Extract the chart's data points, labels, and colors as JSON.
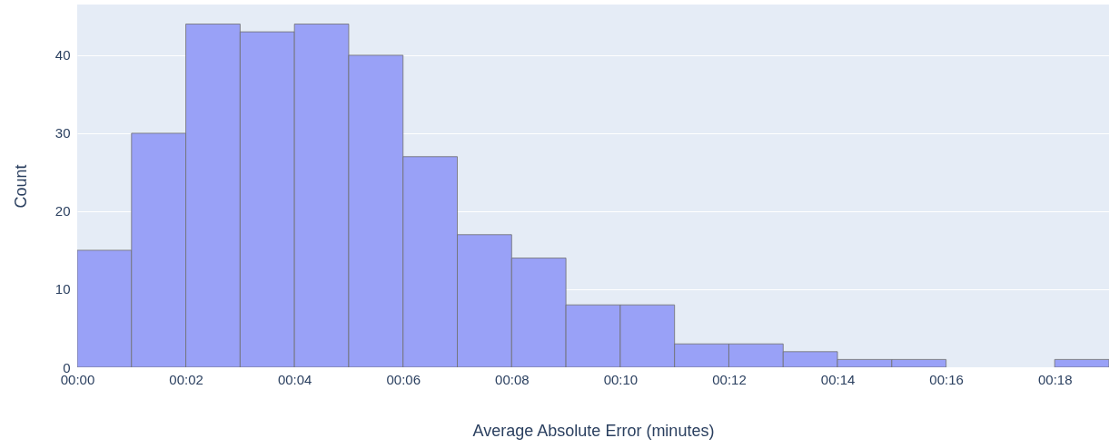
{
  "chart_data": {
    "type": "histogram",
    "xlabel": "Average Absolute Error (minutes)",
    "ylabel": "Count",
    "bins": [
      0,
      1,
      2,
      3,
      4,
      5,
      6,
      7,
      8,
      9,
      10,
      11,
      12,
      13,
      14,
      15,
      16,
      17,
      18,
      19
    ],
    "values": [
      15,
      30,
      44,
      43,
      44,
      40,
      27,
      17,
      14,
      8,
      8,
      3,
      3,
      2,
      1,
      1,
      0,
      0,
      1
    ],
    "color": "#99a1f7",
    "xlim": [
      0,
      19
    ],
    "xticks": [
      {
        "value": 0,
        "label": "00:00"
      },
      {
        "value": 2,
        "label": "00:02"
      },
      {
        "value": 4,
        "label": "00:04"
      },
      {
        "value": 6,
        "label": "00:06"
      },
      {
        "value": 8,
        "label": "00:08"
      },
      {
        "value": 10,
        "label": "00:10"
      },
      {
        "value": 12,
        "label": "00:12"
      },
      {
        "value": 14,
        "label": "00:14"
      },
      {
        "value": 16,
        "label": "00:16"
      },
      {
        "value": 18,
        "label": "00:18"
      }
    ],
    "ylim": [
      0,
      46.5
    ],
    "yticks": [
      0,
      10,
      20,
      30,
      40
    ],
    "grid": "y"
  }
}
